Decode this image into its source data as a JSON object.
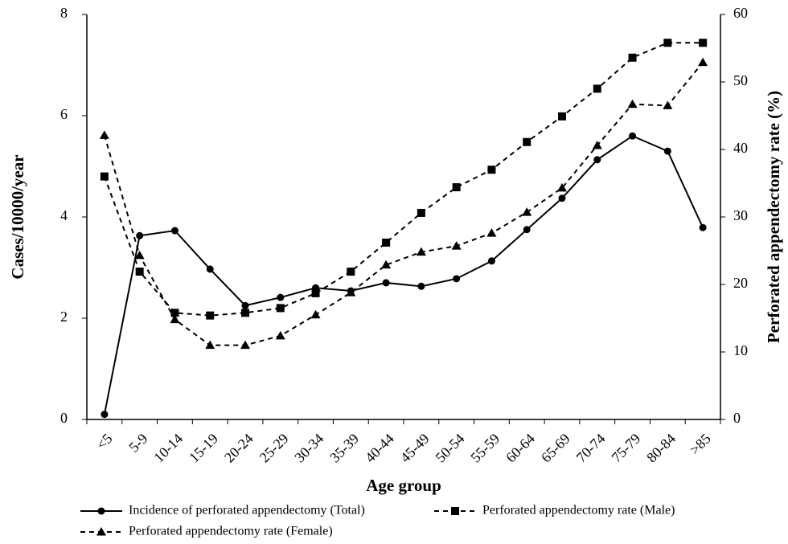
{
  "chart_data": {
    "type": "line",
    "x_label": "Age group",
    "y_label": "Cases/10000/year",
    "y2_label": "Perforated appendectomy rate (%)",
    "categories": [
      "<5",
      "5-9",
      "10-14",
      "15-19",
      "20-24",
      "25-29",
      "30-34",
      "35-39",
      "40-44",
      "45-49",
      "50-54",
      "55-59",
      "60-64",
      "65-69",
      "70-74",
      "75-79",
      "80-84",
      ">85"
    ],
    "series": [
      {
        "name": "Incidence of perforated appendectomy (Total)",
        "color": "#000000",
        "dash": false,
        "marker": "circle",
        "axis": "y",
        "values": [
          0.1,
          3.63,
          3.73,
          2.97,
          2.25,
          2.41,
          2.6,
          2.54,
          2.7,
          2.63,
          2.78,
          3.13,
          3.75,
          4.37,
          5.13,
          5.6,
          5.3,
          3.79
        ]
      },
      {
        "name": "Perforated appendectomy rate (Male)",
        "color": "#000000",
        "dash": true,
        "marker": "square",
        "axis": "y2",
        "values": [
          36,
          21.9,
          15.8,
          15.4,
          15.8,
          16.5,
          18.7,
          21.9,
          26.2,
          30.6,
          34.4,
          37,
          41.1,
          44.9,
          49,
          53.6,
          55.8,
          55.8
        ]
      },
      {
        "name": "Perforated appendectomy rate (Female)",
        "color": "#000000",
        "dash": true,
        "marker": "triangle",
        "axis": "y2",
        "values": [
          42.1,
          24.3,
          14.8,
          11,
          11,
          12.4,
          15.5,
          18.8,
          22.9,
          24.8,
          25.7,
          27.6,
          30.7,
          34.3,
          40.6,
          46.7,
          46.5,
          52.9
        ]
      }
    ],
    "ylim": [
      0,
      8
    ],
    "yticks": [
      0,
      2,
      4,
      6,
      8
    ],
    "y2lim": [
      0,
      60
    ],
    "y2ticks": [
      0,
      10,
      20,
      30,
      40,
      50,
      60
    ],
    "grid": false
  }
}
